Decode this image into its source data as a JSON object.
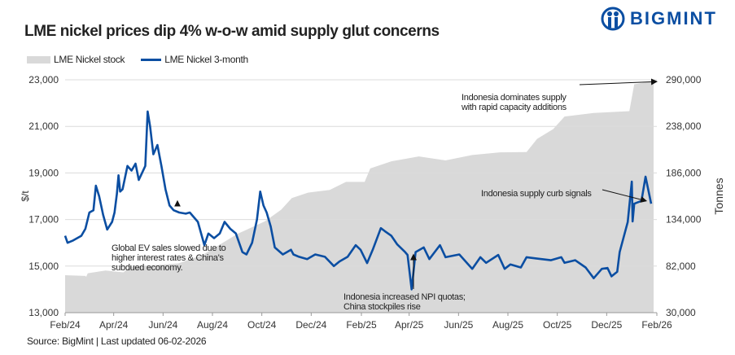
{
  "title": "LME nickel prices dip 4% w-o-w amid supply glut concerns",
  "logo": {
    "text": "BIGMINT",
    "color": "#0b4ea2"
  },
  "source": "Source: BigMint | Last updated 06-02-2026",
  "chart_data": {
    "type": "line+area",
    "title": "LME nickel prices dip 4% w-o-w amid supply glut concerns",
    "ylabel": "$/t",
    "y2label": "Tonnes",
    "ylim": [
      13000,
      23000
    ],
    "y2lim": [
      30000,
      290000
    ],
    "yticks": [
      "13,000",
      "15,000",
      "17,000",
      "19,000",
      "21,000",
      "23,000"
    ],
    "y2ticks": [
      "30,000",
      "82,000",
      "134,000",
      "186,000",
      "238,000",
      "290,000"
    ],
    "xlim": [
      "2024-02-01",
      "2026-02-01"
    ],
    "xticks": [
      {
        "date": "2024-02-01",
        "label": "Feb/24"
      },
      {
        "date": "2024-04-01",
        "label": "Apr/24"
      },
      {
        "date": "2024-06-01",
        "label": "Jun/24"
      },
      {
        "date": "2024-08-01",
        "label": "Aug/24"
      },
      {
        "date": "2024-10-01",
        "label": "Oct/24"
      },
      {
        "date": "2024-12-01",
        "label": "Dec/24"
      },
      {
        "date": "2025-02-01",
        "label": "Feb/25"
      },
      {
        "date": "2025-04-01",
        "label": "Apr/25"
      },
      {
        "date": "2025-06-01",
        "label": "Jun/25"
      },
      {
        "date": "2025-08-01",
        "label": "Aug/25"
      },
      {
        "date": "2025-10-01",
        "label": "Oct/25"
      },
      {
        "date": "2025-12-01",
        "label": "Dec/25"
      },
      {
        "date": "2026-02-01",
        "label": "Feb/26"
      }
    ],
    "grid": "horizontal",
    "legend_placement": "top-left",
    "series": [
      {
        "name": "LME Nickel stock",
        "type": "area",
        "axis": "right",
        "color": "#d9d9d9",
        "points": [
          [
            "2024-02-01",
            71800
          ],
          [
            "2024-02-26",
            71000
          ],
          [
            "2024-02-27",
            70000
          ],
          [
            "2024-02-29",
            74000
          ],
          [
            "2024-03-22",
            77000
          ],
          [
            "2024-04-13",
            75000
          ],
          [
            "2024-04-21",
            81000
          ],
          [
            "2024-06-20",
            85000
          ],
          [
            "2024-07-20",
            94500
          ],
          [
            "2024-09-01",
            118000
          ],
          [
            "2024-10-05",
            132000
          ],
          [
            "2024-10-25",
            145000
          ],
          [
            "2024-11-07",
            158000
          ],
          [
            "2024-11-27",
            164000
          ],
          [
            "2024-12-24",
            167000
          ],
          [
            "2025-01-13",
            176000
          ],
          [
            "2025-02-05",
            176000
          ],
          [
            "2025-02-12",
            191000
          ],
          [
            "2025-03-10",
            199000
          ],
          [
            "2025-04-13",
            204500
          ],
          [
            "2025-05-16",
            200000
          ],
          [
            "2025-06-18",
            206000
          ],
          [
            "2025-07-22",
            209000
          ],
          [
            "2025-08-24",
            209300
          ],
          [
            "2025-09-06",
            224000
          ],
          [
            "2025-09-26",
            235000
          ],
          [
            "2025-10-10",
            249000
          ],
          [
            "2025-11-15",
            253000
          ],
          [
            "2025-12-29",
            255000
          ],
          [
            "2026-01-04",
            285000
          ],
          [
            "2026-01-24",
            288000
          ],
          [
            "2026-01-28",
            288000
          ]
        ]
      },
      {
        "name": "LME Nickel 3-month",
        "type": "line",
        "axis": "left",
        "color": "#0b4ea2",
        "points": [
          [
            "2024-02-01",
            16300
          ],
          [
            "2024-02-04",
            16000
          ],
          [
            "2024-02-11",
            16100
          ],
          [
            "2024-02-21",
            16300
          ],
          [
            "2024-02-26",
            16600
          ],
          [
            "2024-03-02",
            17300
          ],
          [
            "2024-03-07",
            17400
          ],
          [
            "2024-03-10",
            18450
          ],
          [
            "2024-03-14",
            18000
          ],
          [
            "2024-03-19",
            17200
          ],
          [
            "2024-03-24",
            16570
          ],
          [
            "2024-03-30",
            16900
          ],
          [
            "2024-04-02",
            17300
          ],
          [
            "2024-04-05",
            18100
          ],
          [
            "2024-04-07",
            18900
          ],
          [
            "2024-04-09",
            18200
          ],
          [
            "2024-04-12",
            18300
          ],
          [
            "2024-04-18",
            19300
          ],
          [
            "2024-04-23",
            19100
          ],
          [
            "2024-04-28",
            19400
          ],
          [
            "2024-05-02",
            18700
          ],
          [
            "2024-05-06",
            19000
          ],
          [
            "2024-05-10",
            19300
          ],
          [
            "2024-05-13",
            21640
          ],
          [
            "2024-05-16",
            21000
          ],
          [
            "2024-05-20",
            19800
          ],
          [
            "2024-05-25",
            20200
          ],
          [
            "2024-05-30",
            19300
          ],
          [
            "2024-06-04",
            18300
          ],
          [
            "2024-06-09",
            17600
          ],
          [
            "2024-06-14",
            17400
          ],
          [
            "2024-06-21",
            17300
          ],
          [
            "2024-06-29",
            17250
          ],
          [
            "2024-07-04",
            17300
          ],
          [
            "2024-07-14",
            16900
          ],
          [
            "2024-07-22",
            15900
          ],
          [
            "2024-07-27",
            16400
          ],
          [
            "2024-08-03",
            16200
          ],
          [
            "2024-08-10",
            16400
          ],
          [
            "2024-08-16",
            16900
          ],
          [
            "2024-08-23",
            16600
          ],
          [
            "2024-08-30",
            16400
          ],
          [
            "2024-09-07",
            15600
          ],
          [
            "2024-09-12",
            15500
          ],
          [
            "2024-09-19",
            16000
          ],
          [
            "2024-09-25",
            17000
          ],
          [
            "2024-09-29",
            18200
          ],
          [
            "2024-10-03",
            17600
          ],
          [
            "2024-10-07",
            17300
          ],
          [
            "2024-10-12",
            16700
          ],
          [
            "2024-10-17",
            15800
          ],
          [
            "2024-10-27",
            15500
          ],
          [
            "2024-11-06",
            15700
          ],
          [
            "2024-11-09",
            15500
          ],
          [
            "2024-11-16",
            15400
          ],
          [
            "2024-11-26",
            15300
          ],
          [
            "2024-12-06",
            15500
          ],
          [
            "2024-12-18",
            15400
          ],
          [
            "2024-12-29",
            15000
          ],
          [
            "2025-01-05",
            15200
          ],
          [
            "2025-01-15",
            15400
          ],
          [
            "2025-01-25",
            15900
          ],
          [
            "2025-01-31",
            15700
          ],
          [
            "2025-02-08",
            15130
          ],
          [
            "2025-02-15",
            15700
          ],
          [
            "2025-02-25",
            16630
          ],
          [
            "2025-03-02",
            16500
          ],
          [
            "2025-03-10",
            16300
          ],
          [
            "2025-03-17",
            15940
          ],
          [
            "2025-03-27",
            15600
          ],
          [
            "2025-03-30",
            15480
          ],
          [
            "2025-04-04",
            14000
          ],
          [
            "2025-04-09",
            15600
          ],
          [
            "2025-04-19",
            15800
          ],
          [
            "2025-04-26",
            15300
          ],
          [
            "2025-05-09",
            15900
          ],
          [
            "2025-05-16",
            15380
          ],
          [
            "2025-06-02",
            15500
          ],
          [
            "2025-06-18",
            14880
          ],
          [
            "2025-06-28",
            15380
          ],
          [
            "2025-07-05",
            15140
          ],
          [
            "2025-07-20",
            15480
          ],
          [
            "2025-07-28",
            14880
          ],
          [
            "2025-08-04",
            15070
          ],
          [
            "2025-08-17",
            14940
          ],
          [
            "2025-08-24",
            15380
          ],
          [
            "2025-09-06",
            15320
          ],
          [
            "2025-09-23",
            15250
          ],
          [
            "2025-10-06",
            15380
          ],
          [
            "2025-10-10",
            15140
          ],
          [
            "2025-10-23",
            15250
          ],
          [
            "2025-11-05",
            14940
          ],
          [
            "2025-11-15",
            14480
          ],
          [
            "2025-11-25",
            14880
          ],
          [
            "2025-12-02",
            14920
          ],
          [
            "2025-12-07",
            14560
          ],
          [
            "2025-12-14",
            14760
          ],
          [
            "2025-12-17",
            15600
          ],
          [
            "2025-12-27",
            16890
          ],
          [
            "2026-01-01",
            18630
          ],
          [
            "2026-01-02",
            16920
          ],
          [
            "2026-01-04",
            17680
          ],
          [
            "2026-01-13",
            17800
          ],
          [
            "2026-01-18",
            18840
          ],
          [
            "2026-01-25",
            17680
          ]
        ]
      }
    ],
    "annotations": [
      {
        "lines": [
          "Global EV sales slowed due to",
          "higher interest rates & China's",
          "subdued economy."
        ],
        "arrow_to": [
          "2024-06-17",
          17800
        ]
      },
      {
        "lines": [
          "Indonesia increased NPI quotas;",
          "China stockpiles rise"
        ],
        "arrow_to": [
          "2025-04-04",
          15500
        ]
      },
      {
        "lines": [
          "Indonesia dominates supply",
          "with rapid capacity additions"
        ],
        "arrow_to": [
          "2026-02-01",
          288000
        ]
      },
      {
        "lines": [
          "Indonesia supply curb signals"
        ],
        "arrow_to": [
          "2026-01-19",
          17800
        ]
      }
    ]
  }
}
